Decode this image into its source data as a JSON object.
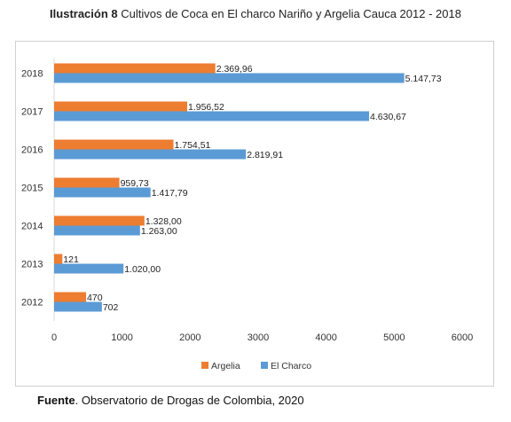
{
  "header": {
    "title_bold": "Ilustración 8",
    "title_rest": " Cultivos de Coca en El charco Nariño y Argelia Cauca 2012 - 2018"
  },
  "footer": {
    "source_bold": "Fuente",
    "source_rest": ". Observatorio de Drogas de Colombia, 2020"
  },
  "chart_data": {
    "type": "bar",
    "orientation": "horizontal",
    "title": "Ilustración 8 Cultivos de Coca en El charco Nariño y Argelia Cauca 2012 - 2018",
    "xlabel": "",
    "ylabel": "",
    "categories": [
      "2018",
      "2017",
      "2016",
      "2015",
      "2014",
      "2013",
      "2012"
    ],
    "series": [
      {
        "name": "Argelia",
        "color": "#ED7D31",
        "values": [
          2369.96,
          1956.52,
          1754.51,
          959.73,
          1328.0,
          121,
          470
        ],
        "labels": [
          "2.369,96",
          "1.956,52",
          "1.754,51",
          "959,73",
          "1.328,00",
          "121",
          "470"
        ]
      },
      {
        "name": "El Charco",
        "color": "#5B9BD5",
        "values": [
          5147.73,
          4630.67,
          2819.91,
          1417.79,
          1263.0,
          1020.0,
          702
        ],
        "labels": [
          "5.147,73",
          "4.630,67",
          "2.819,91",
          "1.417,79",
          "1.263,00",
          "1.020,00",
          "702"
        ]
      }
    ],
    "xlim": [
      0,
      6000
    ],
    "xticks": [
      "0",
      "1000",
      "2000",
      "3000",
      "4000",
      "5000",
      "6000"
    ],
    "legend": "bottom",
    "grid": false
  }
}
